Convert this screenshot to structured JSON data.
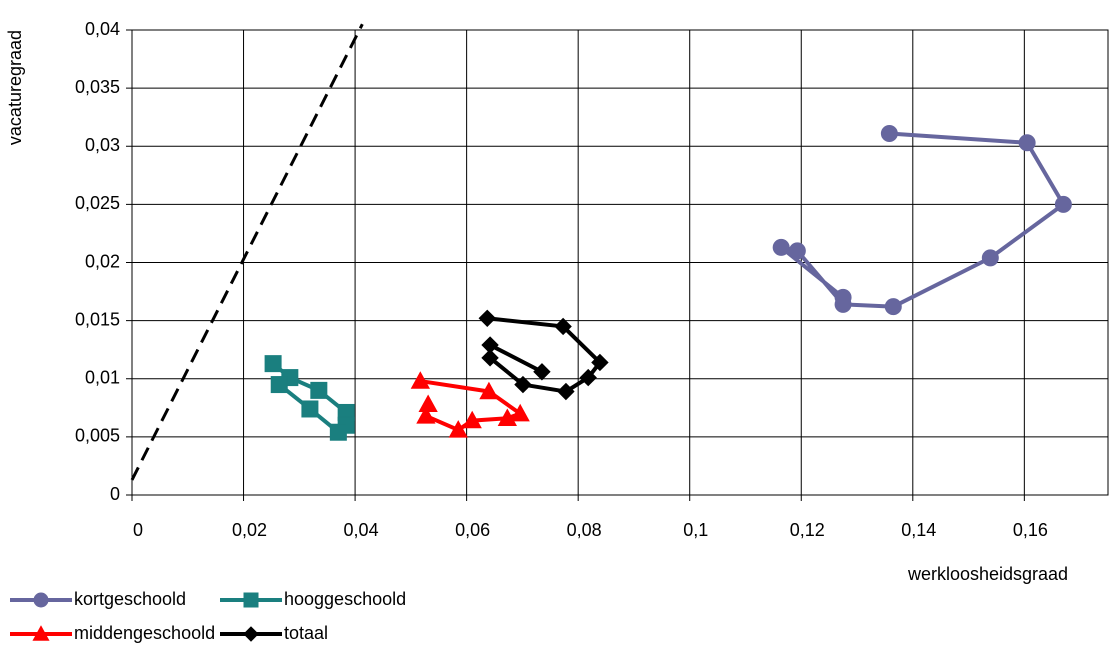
{
  "chart_data": {
    "type": "scatter",
    "x_label": "werkloosheidsgraad",
    "y_label": "vacaturegraad",
    "xlim": [
      0,
      0.175
    ],
    "ylim": [
      0,
      0.04
    ],
    "xticks": [
      0,
      {
        "value": 0.02,
        "label": "0,02"
      },
      {
        "value": 0.04,
        "label": "0,04"
      },
      {
        "value": 0.06,
        "label": "0,06"
      },
      {
        "value": 0.08,
        "label": "0,08"
      },
      {
        "value": 0.1,
        "label": "0,1"
      },
      {
        "value": 0.12,
        "label": "0,12"
      },
      {
        "value": 0.14,
        "label": "0,14"
      },
      {
        "value": 0.16,
        "label": "0,16"
      }
    ],
    "yticks": [
      0,
      {
        "value": 0.005,
        "label": "0,005"
      },
      {
        "value": 0.01,
        "label": "0,01"
      },
      {
        "value": 0.015,
        "label": "0,015"
      },
      {
        "value": 0.02,
        "label": "0,02"
      },
      {
        "value": 0.025,
        "label": "0,025"
      },
      {
        "value": 0.03,
        "label": "0,03"
      },
      {
        "value": 0.035,
        "label": "0,035"
      },
      {
        "value": 0.04,
        "label": "0,04"
      }
    ],
    "grid": true,
    "legend": "bottom-left",
    "reference_line": {
      "x": [
        0,
        0.0413
      ],
      "y": [
        0.0013,
        0.0405
      ],
      "color": "#000000",
      "dashed": true
    },
    "series": [
      {
        "name": "kortgeschoold",
        "color": "#66669e",
        "marker": "circle",
        "x": [
          0.1358,
          0.1605,
          0.167,
          0.1539,
          0.1365,
          0.1275,
          0.1193,
          0.1164,
          0.1275
        ],
        "values": [
          0.0311,
          0.0303,
          0.025,
          0.0204,
          0.0162,
          0.0164,
          0.021,
          0.0213,
          0.017
        ]
      },
      {
        "name": "hooggeschoold",
        "color": "#1a7f7f",
        "marker": "square",
        "x": [
          0.0253,
          0.0283,
          0.0335,
          0.0384,
          0.0384,
          0.037,
          0.0319,
          0.0264
        ],
        "values": [
          0.0113,
          0.0101,
          0.009,
          0.0071,
          0.006,
          0.0054,
          0.0074,
          0.0095
        ]
      },
      {
        "name": "middengeschoold",
        "color": "#ff0000",
        "marker": "triangle",
        "x": [
          0.0517,
          0.064,
          0.0696,
          0.0673,
          0.061,
          0.0585,
          0.0527,
          0.0531
        ],
        "values": [
          0.0098,
          0.0089,
          0.007,
          0.0066,
          0.0064,
          0.0056,
          0.0068,
          0.0078
        ]
      },
      {
        "name": "totaal",
        "color": "#000000",
        "marker": "diamond",
        "x": [
          0.0637,
          0.0773,
          0.0839,
          0.0818,
          0.0778,
          0.0701,
          0.0642,
          0.0642,
          0.0735
        ],
        "values": [
          0.0152,
          0.0145,
          0.0114,
          0.0101,
          0.0089,
          0.0095,
          0.0118,
          0.0129,
          0.0106
        ]
      }
    ]
  }
}
